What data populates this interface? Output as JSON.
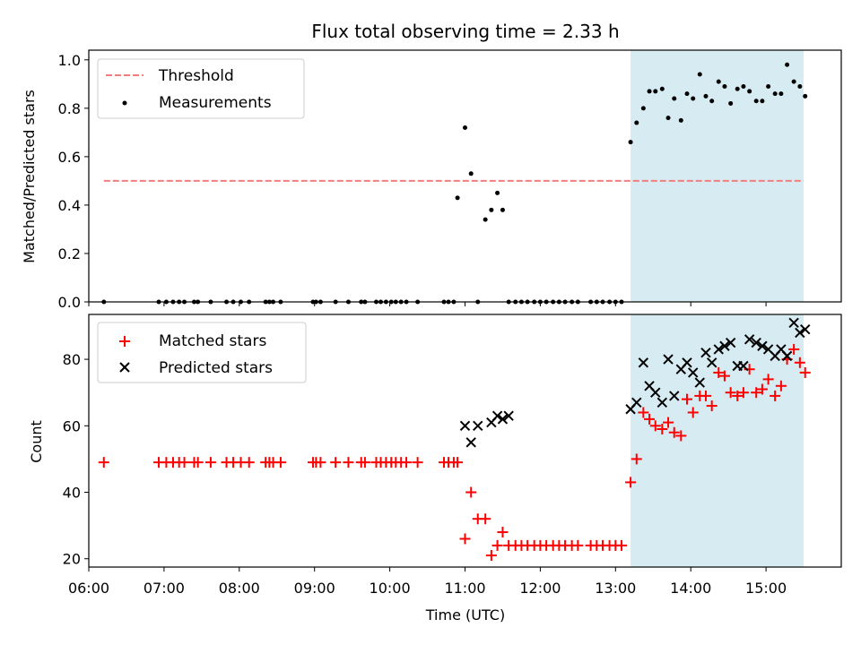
{
  "title": "Flux total observing time = 2.33 h",
  "colors": {
    "threshold": "#f08080",
    "measurement": "#000000",
    "matched": "#ff0000",
    "predicted": "#000000",
    "shade": "#add8e6"
  },
  "chart_data": [
    {
      "type": "scatter",
      "ylabel": "Matched/Predicted stars",
      "ylim": [
        0,
        1.04
      ],
      "xlim": [
        6.0,
        16.0
      ],
      "yticks": [
        0.0,
        0.2,
        0.4,
        0.6,
        0.8,
        1.0
      ],
      "ytick_labels": [
        "0.0",
        "0.2",
        "0.4",
        "0.6",
        "0.8",
        "1.0"
      ],
      "legend_placement": "top-left",
      "shaded_region": [
        13.2,
        15.5
      ],
      "threshold": {
        "name": "Threshold",
        "value": 0.5,
        "x_range": [
          6.2,
          15.5
        ]
      },
      "series": [
        {
          "name": "Measurements",
          "x": [
            6.2,
            6.93,
            7.03,
            7.12,
            7.2,
            7.27,
            7.4,
            7.45,
            7.62,
            7.83,
            7.92,
            8.02,
            8.13,
            8.35,
            8.4,
            8.45,
            8.55,
            8.98,
            9.02,
            9.08,
            9.28,
            9.45,
            9.62,
            9.67,
            9.82,
            9.88,
            9.95,
            10.02,
            10.08,
            10.15,
            10.22,
            10.37,
            10.72,
            10.78,
            10.85,
            10.9,
            11.0,
            11.08,
            11.17,
            11.27,
            11.35,
            11.43,
            11.5,
            11.58,
            11.67,
            11.75,
            11.83,
            11.92,
            12.0,
            12.08,
            12.17,
            12.25,
            12.33,
            12.42,
            12.5,
            12.67,
            12.75,
            12.83,
            12.92,
            13.0,
            13.08,
            13.2,
            13.28,
            13.37,
            13.45,
            13.53,
            13.62,
            13.7,
            13.78,
            13.87,
            13.95,
            14.03,
            14.12,
            14.2,
            14.28,
            14.37,
            14.45,
            14.53,
            14.62,
            14.7,
            14.78,
            14.87,
            14.95,
            15.03,
            15.12,
            15.2,
            15.28,
            15.37,
            15.45,
            15.52
          ],
          "y": [
            0,
            0,
            0,
            0,
            0,
            0,
            0,
            0,
            0,
            0,
            0,
            0,
            0,
            0,
            0,
            0,
            0,
            0,
            0,
            0,
            0,
            0,
            0,
            0,
            0,
            0,
            0,
            0,
            0,
            0,
            0,
            0,
            0,
            0,
            0,
            0.43,
            0.72,
            0.53,
            0,
            0.34,
            0.38,
            0.45,
            0.38,
            0,
            0,
            0,
            0,
            0,
            0,
            0,
            0,
            0,
            0,
            0,
            0,
            0,
            0,
            0,
            0,
            0,
            0,
            0.66,
            0.74,
            0.8,
            0.87,
            0.87,
            0.88,
            0.76,
            0.84,
            0.75,
            0.86,
            0.84,
            0.94,
            0.85,
            0.83,
            0.91,
            0.89,
            0.82,
            0.88,
            0.89,
            0.87,
            0.83,
            0.83,
            0.89,
            0.86,
            0.86,
            0.98,
            0.91,
            0.89,
            0.85
          ]
        }
      ]
    },
    {
      "type": "scatter",
      "ylabel": "Count",
      "xlabel": "Time (UTC)",
      "ylim": [
        17.5,
        93.5
      ],
      "xlim": [
        6.0,
        16.0
      ],
      "yticks": [
        20,
        40,
        60,
        80
      ],
      "ytick_labels": [
        "20",
        "40",
        "60",
        "80"
      ],
      "xticks": [
        6,
        7,
        8,
        9,
        10,
        11,
        12,
        13,
        14,
        15
      ],
      "xtick_labels": [
        "06:00",
        "07:00",
        "08:00",
        "09:00",
        "10:00",
        "11:00",
        "12:00",
        "13:00",
        "14:00",
        "15:00"
      ],
      "legend_placement": "top-left",
      "shaded_region": [
        13.2,
        15.5
      ],
      "series": [
        {
          "name": "Matched stars",
          "x": [
            6.2,
            6.93,
            7.03,
            7.12,
            7.2,
            7.27,
            7.4,
            7.45,
            7.62,
            7.83,
            7.92,
            8.02,
            8.13,
            8.35,
            8.4,
            8.45,
            8.55,
            8.98,
            9.02,
            9.08,
            9.28,
            9.45,
            9.62,
            9.67,
            9.82,
            9.88,
            9.95,
            10.02,
            10.08,
            10.15,
            10.22,
            10.37,
            10.72,
            10.78,
            10.85,
            10.9,
            11.0,
            11.08,
            11.17,
            11.27,
            11.35,
            11.43,
            11.5,
            11.58,
            11.67,
            11.75,
            11.83,
            11.92,
            12.0,
            12.08,
            12.17,
            12.25,
            12.33,
            12.42,
            12.5,
            12.67,
            12.75,
            12.83,
            12.92,
            13.0,
            13.08,
            13.2,
            13.28,
            13.37,
            13.45,
            13.53,
            13.62,
            13.7,
            13.78,
            13.87,
            13.95,
            14.03,
            14.12,
            14.2,
            14.28,
            14.37,
            14.45,
            14.53,
            14.62,
            14.7,
            14.78,
            14.87,
            14.95,
            15.03,
            15.12,
            15.2,
            15.28,
            15.37,
            15.45,
            15.52
          ],
          "y": [
            49,
            49,
            49,
            49,
            49,
            49,
            49,
            49,
            49,
            49,
            49,
            49,
            49,
            49,
            49,
            49,
            49,
            49,
            49,
            49,
            49,
            49,
            49,
            49,
            49,
            49,
            49,
            49,
            49,
            49,
            49,
            49,
            49,
            49,
            49,
            49,
            26,
            40,
            32,
            32,
            21,
            24,
            28,
            24,
            24,
            24,
            24,
            24,
            24,
            24,
            24,
            24,
            24,
            24,
            24,
            24,
            24,
            24,
            24,
            24,
            24,
            43,
            50,
            64,
            62,
            60,
            59,
            61,
            58,
            57,
            68,
            64,
            69,
            69,
            66,
            76,
            75,
            70,
            69,
            70,
            77,
            70,
            71,
            74,
            69,
            72,
            80,
            83,
            79,
            76
          ]
        },
        {
          "name": "Predicted stars",
          "x": [
            11.0,
            11.08,
            11.17,
            11.35,
            11.43,
            11.5,
            11.58,
            13.2,
            13.28,
            13.37,
            13.45,
            13.53,
            13.62,
            13.7,
            13.78,
            13.87,
            13.95,
            14.03,
            14.12,
            14.2,
            14.28,
            14.37,
            14.45,
            14.53,
            14.62,
            14.7,
            14.78,
            14.87,
            14.95,
            15.03,
            15.12,
            15.2,
            15.28,
            15.37,
            15.45,
            15.52
          ],
          "y": [
            60,
            55,
            60,
            61,
            63,
            62,
            63,
            65,
            67,
            79,
            72,
            70,
            67,
            80,
            69,
            77,
            79,
            76,
            73,
            82,
            79,
            83,
            84,
            85,
            78,
            78,
            86,
            85,
            84,
            83,
            81,
            83,
            81,
            91,
            88,
            89
          ]
        }
      ]
    }
  ]
}
